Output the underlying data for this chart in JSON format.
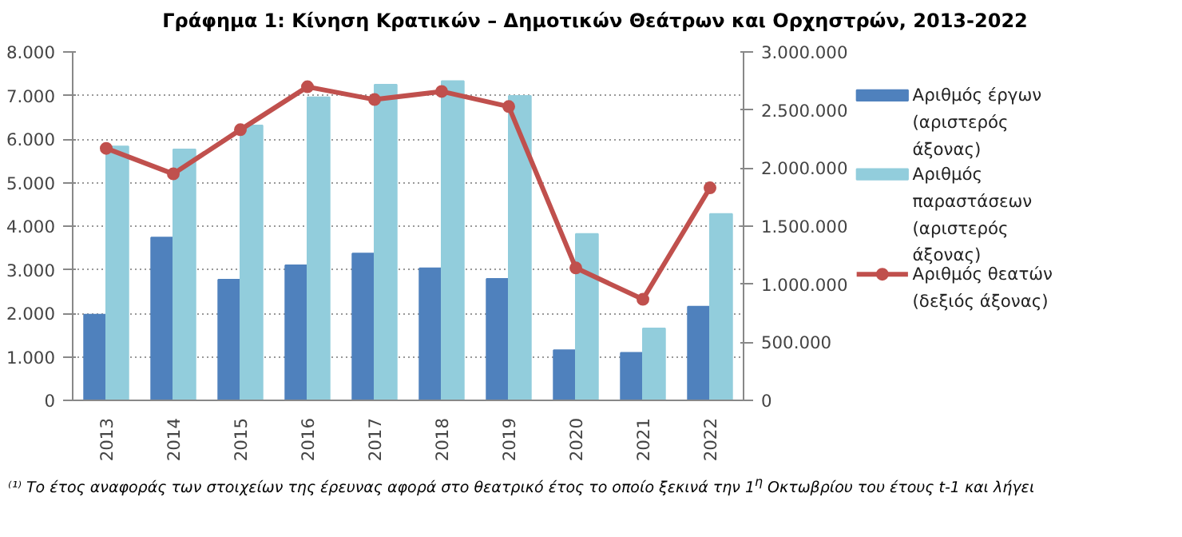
{
  "chart_data": {
    "type": "bar",
    "title": "Γράφημα 1: Κίνηση Κρατικών – Δημοτικών Θεάτρων και Ορχηστρών, 2013-2022",
    "categories": [
      "2013",
      "2014",
      "2015",
      "2016",
      "2017",
      "2018",
      "2019",
      "2020",
      "2021",
      "2022"
    ],
    "series": [
      {
        "name": "Αριθμός έργων (αριστερός άξονας)",
        "color": "#4f81bd",
        "values": [
          1970,
          3740,
          2770,
          3100,
          3370,
          3030,
          2790,
          1150,
          1090,
          2150
        ]
      },
      {
        "name": "Αριθμός παραστάσεων (αριστερός άξονας)",
        "color": "#92cddc",
        "values": [
          5830,
          5760,
          6310,
          6960,
          7250,
          7330,
          6990,
          3820,
          1650,
          4280
        ]
      },
      {
        "name": "Αριθμός θεατών (δεξιός άξονας)",
        "color": "#c0504d",
        "type": "line",
        "axis": "y2",
        "marker": "circle",
        "values": [
          2170000,
          1950000,
          2330000,
          2700000,
          2590000,
          2660000,
          2530000,
          1140000,
          870000,
          1830000
        ]
      }
    ],
    "ylim": [
      0,
      8000
    ],
    "yticks": [
      {
        "value": 0,
        "label": "0"
      },
      {
        "value": 1000,
        "label": "1.000"
      },
      {
        "value": 2000,
        "label": "2.000"
      },
      {
        "value": 3000,
        "label": "3.000"
      },
      {
        "value": 4000,
        "label": "4.000"
      },
      {
        "value": 5000,
        "label": "5.000"
      },
      {
        "value": 6000,
        "label": "6.000"
      },
      {
        "value": 7000,
        "label": "7.000"
      },
      {
        "value": 8000,
        "label": "8.000"
      }
    ],
    "y2lim": [
      0,
      3000000
    ],
    "y2ticks": [
      {
        "value": 0,
        "label": "0"
      },
      {
        "value": 500000,
        "label": "500.000"
      },
      {
        "value": 1000000,
        "label": "1.000.000"
      },
      {
        "value": 1500000,
        "label": "1.500.000"
      },
      {
        "value": 2000000,
        "label": "2.000.000"
      },
      {
        "value": 2500000,
        "label": "2.500.000"
      },
      {
        "value": 3000000,
        "label": "3.000.000"
      }
    ],
    "grid": "y",
    "legend": "right",
    "annotations": [
      "⁽¹⁾ Το έτος αναφοράς των στοιχείων της έρευνας αφορά στο θεατρικό έτος το οποίο ξεκινά την 1$^{η}$ Οκτωβρίου του έτους t-1 και λήγει"
    ]
  }
}
